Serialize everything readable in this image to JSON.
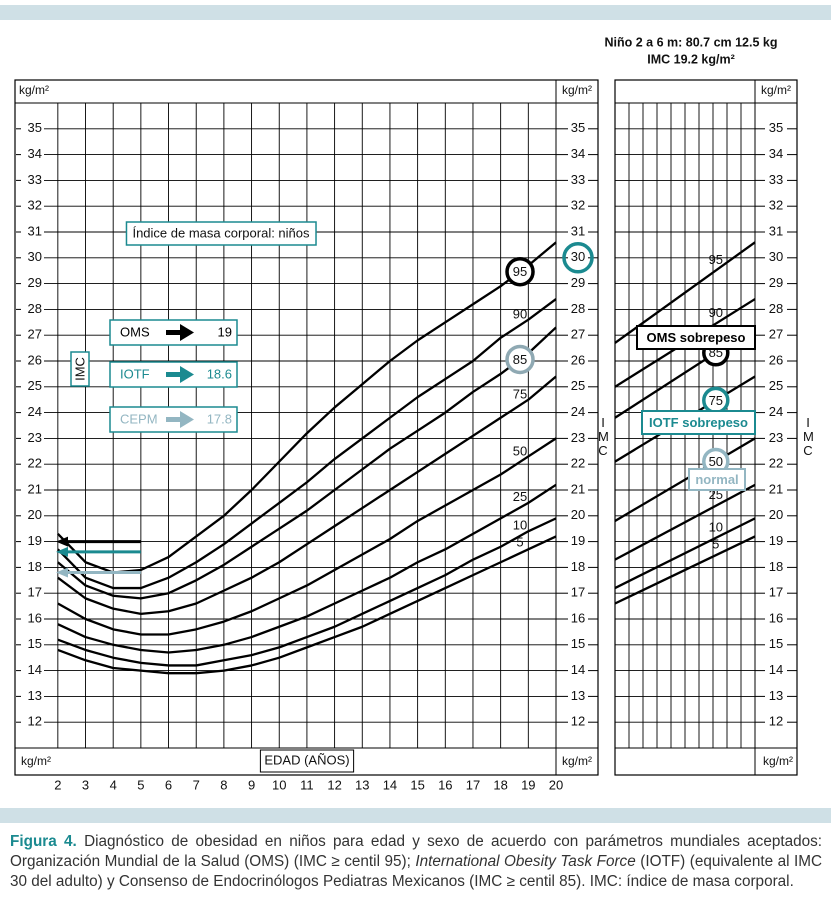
{
  "chart_data": {
    "type": "line",
    "header": [
      "Niño 2 a 6 m: 80.7 cm 12.5 kg",
      "IMC 19.2 kg/m²"
    ],
    "title": "Índice de masa corporal: niños",
    "unit_label": "kg/m²",
    "x_label": "EDAD (AÑOS)",
    "y_label": "IMC",
    "x": [
      2,
      3,
      4,
      5,
      6,
      7,
      8,
      9,
      10,
      11,
      12,
      13,
      14,
      15,
      16,
      17,
      18,
      19,
      20
    ],
    "xlim": [
      1.5,
      20
    ],
    "xticks": [
      2,
      3,
      4,
      5,
      6,
      7,
      8,
      9,
      10,
      11,
      12,
      13,
      14,
      15,
      16,
      17,
      18,
      19,
      20
    ],
    "ylim": [
      11,
      36
    ],
    "yticks": [
      12,
      13,
      14,
      15,
      16,
      17,
      18,
      19,
      20,
      21,
      22,
      23,
      24,
      25,
      26,
      27,
      28,
      29,
      30,
      31,
      32,
      33,
      34,
      35
    ],
    "highlight_tick": 30,
    "highlight_tick_color": "#1b8a90",
    "grid": true,
    "label_x": 18.7,
    "series": [
      {
        "name": "95",
        "color": "#000000",
        "circle": "#000000",
        "values": [
          19.3,
          18.2,
          17.8,
          17.9,
          18.4,
          19.2,
          20.0,
          21.0,
          22.1,
          23.2,
          24.2,
          25.1,
          26.0,
          26.8,
          27.5,
          28.2,
          28.9,
          29.7,
          30.6
        ]
      },
      {
        "name": "90",
        "color": "#000000",
        "values": [
          18.7,
          17.6,
          17.2,
          17.2,
          17.6,
          18.2,
          18.9,
          19.7,
          20.5,
          21.3,
          22.2,
          23.0,
          23.8,
          24.6,
          25.3,
          26.0,
          26.9,
          27.6,
          28.4
        ]
      },
      {
        "name": "85",
        "color": "#000000",
        "circle": "#8fa9b3",
        "values": [
          18.2,
          17.3,
          16.9,
          16.8,
          17.0,
          17.5,
          18.1,
          18.8,
          19.5,
          20.2,
          21.0,
          21.8,
          22.6,
          23.3,
          24.0,
          24.8,
          25.5,
          26.3,
          27.3
        ]
      },
      {
        "name": "75",
        "color": "#000000",
        "values": [
          17.6,
          16.8,
          16.4,
          16.2,
          16.3,
          16.6,
          17.1,
          17.6,
          18.2,
          18.9,
          19.6,
          20.3,
          21.0,
          21.7,
          22.4,
          23.1,
          23.8,
          24.5,
          25.4
        ]
      },
      {
        "name": "50",
        "color": "#000000",
        "values": [
          16.6,
          16.0,
          15.6,
          15.4,
          15.4,
          15.6,
          15.9,
          16.3,
          16.8,
          17.3,
          17.9,
          18.5,
          19.1,
          19.8,
          20.4,
          21.0,
          21.6,
          22.3,
          23.0
        ]
      },
      {
        "name": "25",
        "color": "#000000",
        "values": [
          15.8,
          15.3,
          15.0,
          14.8,
          14.7,
          14.8,
          15.0,
          15.3,
          15.7,
          16.1,
          16.6,
          17.1,
          17.6,
          18.2,
          18.7,
          19.3,
          19.9,
          20.5,
          21.2
        ]
      },
      {
        "name": "10",
        "color": "#000000",
        "values": [
          15.2,
          14.8,
          14.5,
          14.3,
          14.2,
          14.2,
          14.4,
          14.6,
          14.9,
          15.3,
          15.7,
          16.2,
          16.7,
          17.2,
          17.7,
          18.3,
          18.8,
          19.4,
          19.9
        ]
      },
      {
        "name": "5",
        "color": "#000000",
        "values": [
          14.8,
          14.4,
          14.1,
          14.0,
          13.9,
          13.9,
          14.0,
          14.2,
          14.5,
          14.9,
          15.3,
          15.7,
          16.2,
          16.7,
          17.2,
          17.7,
          18.2,
          18.7,
          19.2
        ]
      }
    ],
    "indicators": [
      {
        "name": "OMS",
        "value": 19,
        "color": "#000000"
      },
      {
        "name": "IOTF",
        "value": 18.6,
        "color": "#1b8a90"
      },
      {
        "name": "CEPM",
        "value": 17.8,
        "color": "#93b6c2"
      }
    ],
    "arrow_from": 5,
    "right_panel": {
      "series": [
        {
          "name": "95",
          "values": [
            26.7,
            30.6
          ]
        },
        {
          "name": "90",
          "values": [
            25.0,
            28.4
          ]
        },
        {
          "name": "85",
          "circle": "#000000",
          "values": [
            23.8,
            27.3
          ]
        },
        {
          "name": "75",
          "circle": "#1b8a90",
          "values": [
            22.1,
            25.4
          ]
        },
        {
          "name": "50",
          "circle": "#93b6c2",
          "values": [
            19.8,
            23.0
          ]
        },
        {
          "name": "25",
          "values": [
            18.3,
            21.2
          ]
        },
        {
          "name": "10",
          "values": [
            17.2,
            19.9
          ]
        },
        {
          "name": "5",
          "values": [
            16.6,
            19.2
          ]
        }
      ],
      "annotations": [
        {
          "text": "OMS sobrepeso",
          "color": "#000000"
        },
        {
          "text": "IOTF sobrepeso",
          "color": "#1b8a90"
        },
        {
          "text": "normal",
          "color": "#93b6c2"
        }
      ]
    },
    "caption": [
      "Figura 4.",
      "Diagnóstico de obesidad en niños para edad y sexo de acuerdo con parámetros mundiales aceptados: Organización Mundial de la Salud (OMS) (IMC ≥ centil 95);",
      "International Obesity Task Force",
      "(IOTF) (equivalente al IMC 30 del adulto) y Consenso de Endocrinólogos Pediatras Mexicanos (IMC ≥ centil 85). IMC: índice de masa corporal."
    ]
  }
}
